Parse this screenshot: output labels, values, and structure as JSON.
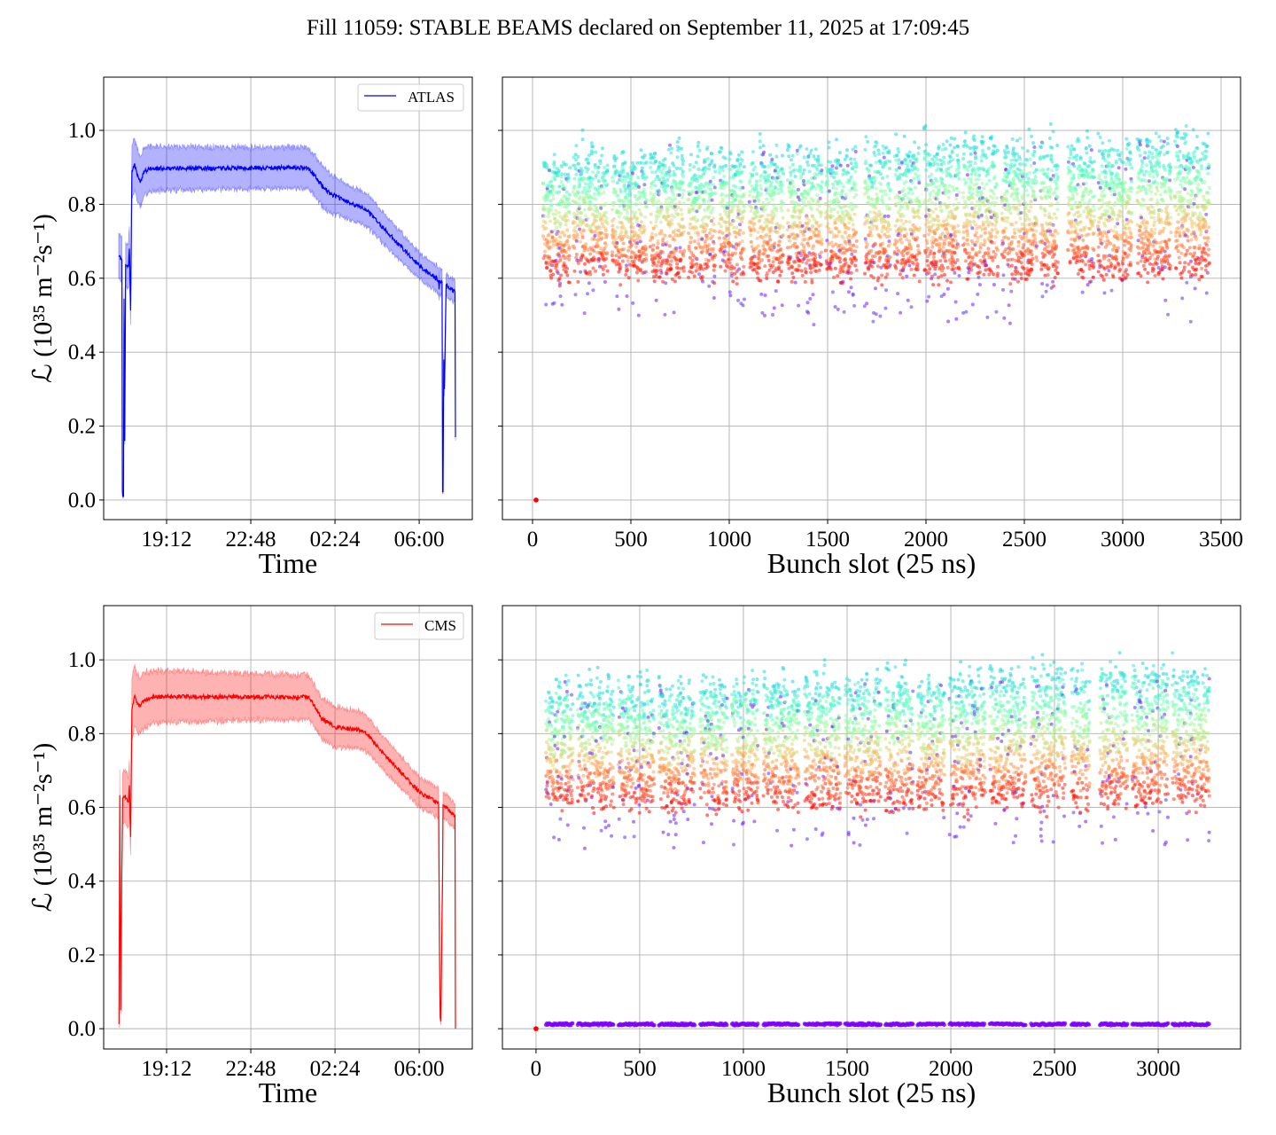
{
  "title": "Fill 11059: STABLE BEAMS declared on September 11, 2025 at 17:09:45",
  "ylabel": "ℒ (10³⁵ m⁻²s⁻¹)",
  "colors": {
    "atlas": "#0000ff",
    "cms": "#ff0000",
    "grid": "#b0b0b0",
    "low_series": "#8000ff"
  },
  "chart_data": [
    {
      "type": "line",
      "panel": "top-left",
      "xlabel": "Time",
      "ylabel": "ℒ (10³⁵ m⁻²s⁻¹)",
      "legend": {
        "label": "ATLAS",
        "placement": "top-right"
      },
      "xlim_hours": [
        16.51,
        32.27
      ],
      "ylim": [
        -0.053,
        1.144
      ],
      "xticks_hours": [
        19.2,
        22.8,
        26.4,
        30.0
      ],
      "xtick_labels": [
        "19:12",
        "22:48",
        "02:24",
        "06:00"
      ],
      "yticks": [
        0.0,
        0.2,
        0.4,
        0.6,
        0.8,
        1.0
      ],
      "ytick_labels": [
        "0.0",
        "0.2",
        "0.4",
        "0.6",
        "0.8",
        "1.0"
      ],
      "grid": true,
      "series": {
        "name": "ATLAS",
        "t": [
          17.15,
          17.29,
          17.31,
          17.33,
          17.36,
          17.38,
          17.41,
          17.45,
          17.57,
          17.61,
          17.66,
          17.72,
          17.82,
          18.07,
          18.26,
          18.6,
          25.27,
          25.97,
          26.29,
          27.11,
          27.68,
          28.87,
          30.01,
          30.83,
          30.85,
          30.88,
          30.98,
          31.0,
          31.02,
          31.05,
          31.08,
          31.15,
          31.53,
          31.55
        ],
        "v": [
          0.661,
          0.65,
          0.026,
          0.01,
          0.01,
          0.545,
          0.16,
          0.638,
          0.633,
          0.68,
          0.513,
          0.89,
          0.909,
          0.858,
          0.89,
          0.897,
          0.899,
          0.841,
          0.826,
          0.801,
          0.789,
          0.709,
          0.633,
          0.595,
          0.57,
          0.595,
          0.59,
          0.022,
          0.022,
          0.38,
          0.3,
          0.581,
          0.563,
          0.17
        ],
        "band": [
          0.06,
          0.06,
          0.01,
          0.005,
          0.005,
          0.03,
          0.01,
          0.06,
          0.06,
          0.06,
          0.04,
          0.07,
          0.07,
          0.07,
          0.065,
          0.06,
          0.055,
          0.055,
          0.05,
          0.045,
          0.045,
          0.04,
          0.035,
          0.035,
          0.03,
          0.035,
          0.035,
          0.005,
          0.005,
          0.02,
          0.02,
          0.03,
          0.03,
          0.01
        ]
      }
    },
    {
      "type": "scatter",
      "panel": "top-right",
      "xlabel": "Bunch slot (25 ns)",
      "xlim": [
        -153,
        3599
      ],
      "ylim": [
        -0.053,
        1.144
      ],
      "xticks": [
        0,
        500,
        1000,
        1500,
        2000,
        2500,
        3000,
        3500
      ],
      "xtick_labels": [
        "0",
        "500",
        "1000",
        "1500",
        "2000",
        "2500",
        "3000",
        "3500"
      ],
      "yticks": [
        0.0,
        0.2,
        0.4,
        0.6,
        0.8,
        1.0
      ],
      "grid": true,
      "colormap": "rainbow",
      "value_range": [
        0.4,
        1.08
      ],
      "outlier_point": {
        "slot": 18,
        "value": 0.0
      },
      "trains": [
        [
          54,
          189
        ],
        [
          207,
          383
        ],
        [
          405,
          581
        ],
        [
          599,
          770
        ],
        [
          793,
          928
        ],
        [
          950,
          1077
        ],
        [
          1103,
          1275
        ],
        [
          1297,
          1473
        ],
        [
          1491,
          1649
        ],
        [
          1689,
          1820
        ],
        [
          1842,
          1969
        ],
        [
          1992,
          2169
        ],
        [
          2190,
          2364
        ],
        [
          2386,
          2563
        ],
        [
          2581,
          2671
        ],
        [
          2721,
          2856
        ],
        [
          2875,
          3046
        ],
        [
          3074,
          3246
        ],
        [
          3266,
          3441
        ]
      ],
      "low_series": null
    },
    {
      "type": "line",
      "panel": "bottom-left",
      "xlabel": "Time",
      "ylabel": "ℒ (10³⁵ m⁻²s⁻¹)",
      "legend": {
        "label": "CMS",
        "placement": "top-right"
      },
      "xlim_hours": [
        16.51,
        32.27
      ],
      "ylim": [
        -0.055,
        1.147
      ],
      "xticks_hours": [
        19.2,
        22.8,
        26.4,
        30.0
      ],
      "xtick_labels": [
        "19:12",
        "22:48",
        "02:24",
        "06:00"
      ],
      "yticks": [
        0.0,
        0.2,
        0.4,
        0.6,
        0.8,
        1.0
      ],
      "ytick_labels": [
        "0.0",
        "0.2",
        "0.4",
        "0.6",
        "0.8",
        "1.0"
      ],
      "grid": true,
      "series": {
        "name": "CMS",
        "t": [
          17.165,
          17.2,
          17.24,
          17.26,
          17.28,
          17.32,
          17.41,
          17.57,
          17.61,
          17.66,
          17.72,
          17.82,
          18.01,
          18.26,
          18.6,
          25.27,
          25.84,
          26.41,
          27.49,
          27.68,
          28.37,
          30.01,
          30.83,
          30.87,
          30.9,
          30.93,
          30.96,
          31.0,
          31.02,
          31.05,
          31.53,
          31.55
        ],
        "v": [
          0.012,
          0.633,
          0.05,
          0.23,
          0.4,
          0.625,
          0.63,
          0.615,
          0.66,
          0.52,
          0.865,
          0.9,
          0.875,
          0.89,
          0.9,
          0.899,
          0.841,
          0.817,
          0.81,
          0.806,
          0.754,
          0.641,
          0.61,
          0.2,
          0.03,
          0.02,
          0.2,
          0.42,
          0.606,
          0.606,
          0.577,
          0.0
        ],
        "band": [
          0.01,
          0.07,
          0.01,
          0.03,
          0.04,
          0.07,
          0.07,
          0.07,
          0.07,
          0.05,
          0.085,
          0.08,
          0.08,
          0.075,
          0.07,
          0.06,
          0.055,
          0.055,
          0.05,
          0.05,
          0.045,
          0.04,
          0.04,
          0.02,
          0.01,
          0.01,
          0.02,
          0.03,
          0.035,
          0.035,
          0.035,
          0.0
        ]
      }
    },
    {
      "type": "scatter",
      "panel": "bottom-right",
      "xlabel": "Bunch slot (25 ns)",
      "xlim": [
        -162,
        3397
      ],
      "ylim": [
        -0.055,
        1.147
      ],
      "xticks": [
        0,
        500,
        1000,
        1500,
        2000,
        2500,
        3000
      ],
      "xtick_labels": [
        "0",
        "500",
        "1000",
        "1500",
        "2000",
        "2500",
        "3000"
      ],
      "yticks": [
        0.0,
        0.2,
        0.4,
        0.6,
        0.8,
        1.0
      ],
      "grid": true,
      "colormap": "rainbow",
      "value_range": [
        0.48,
        1.09
      ],
      "outlier_point": {
        "slot": 0,
        "value": 0.0
      },
      "trains": [
        [
          48,
          179
        ],
        [
          201,
          375
        ],
        [
          398,
          570
        ],
        [
          593,
          765
        ],
        [
          792,
          922
        ],
        [
          945,
          1071
        ],
        [
          1097,
          1268
        ],
        [
          1295,
          1467
        ],
        [
          1490,
          1662
        ],
        [
          1685,
          1817
        ],
        [
          1840,
          1971
        ],
        [
          1994,
          2165
        ],
        [
          2188,
          2360
        ],
        [
          2387,
          2554
        ],
        [
          2582,
          2669
        ],
        [
          2719,
          2852
        ],
        [
          2875,
          3047
        ],
        [
          3069,
          3246
        ]
      ],
      "low_series": {
        "value": 0.012,
        "color": "#8000ff"
      }
    }
  ]
}
